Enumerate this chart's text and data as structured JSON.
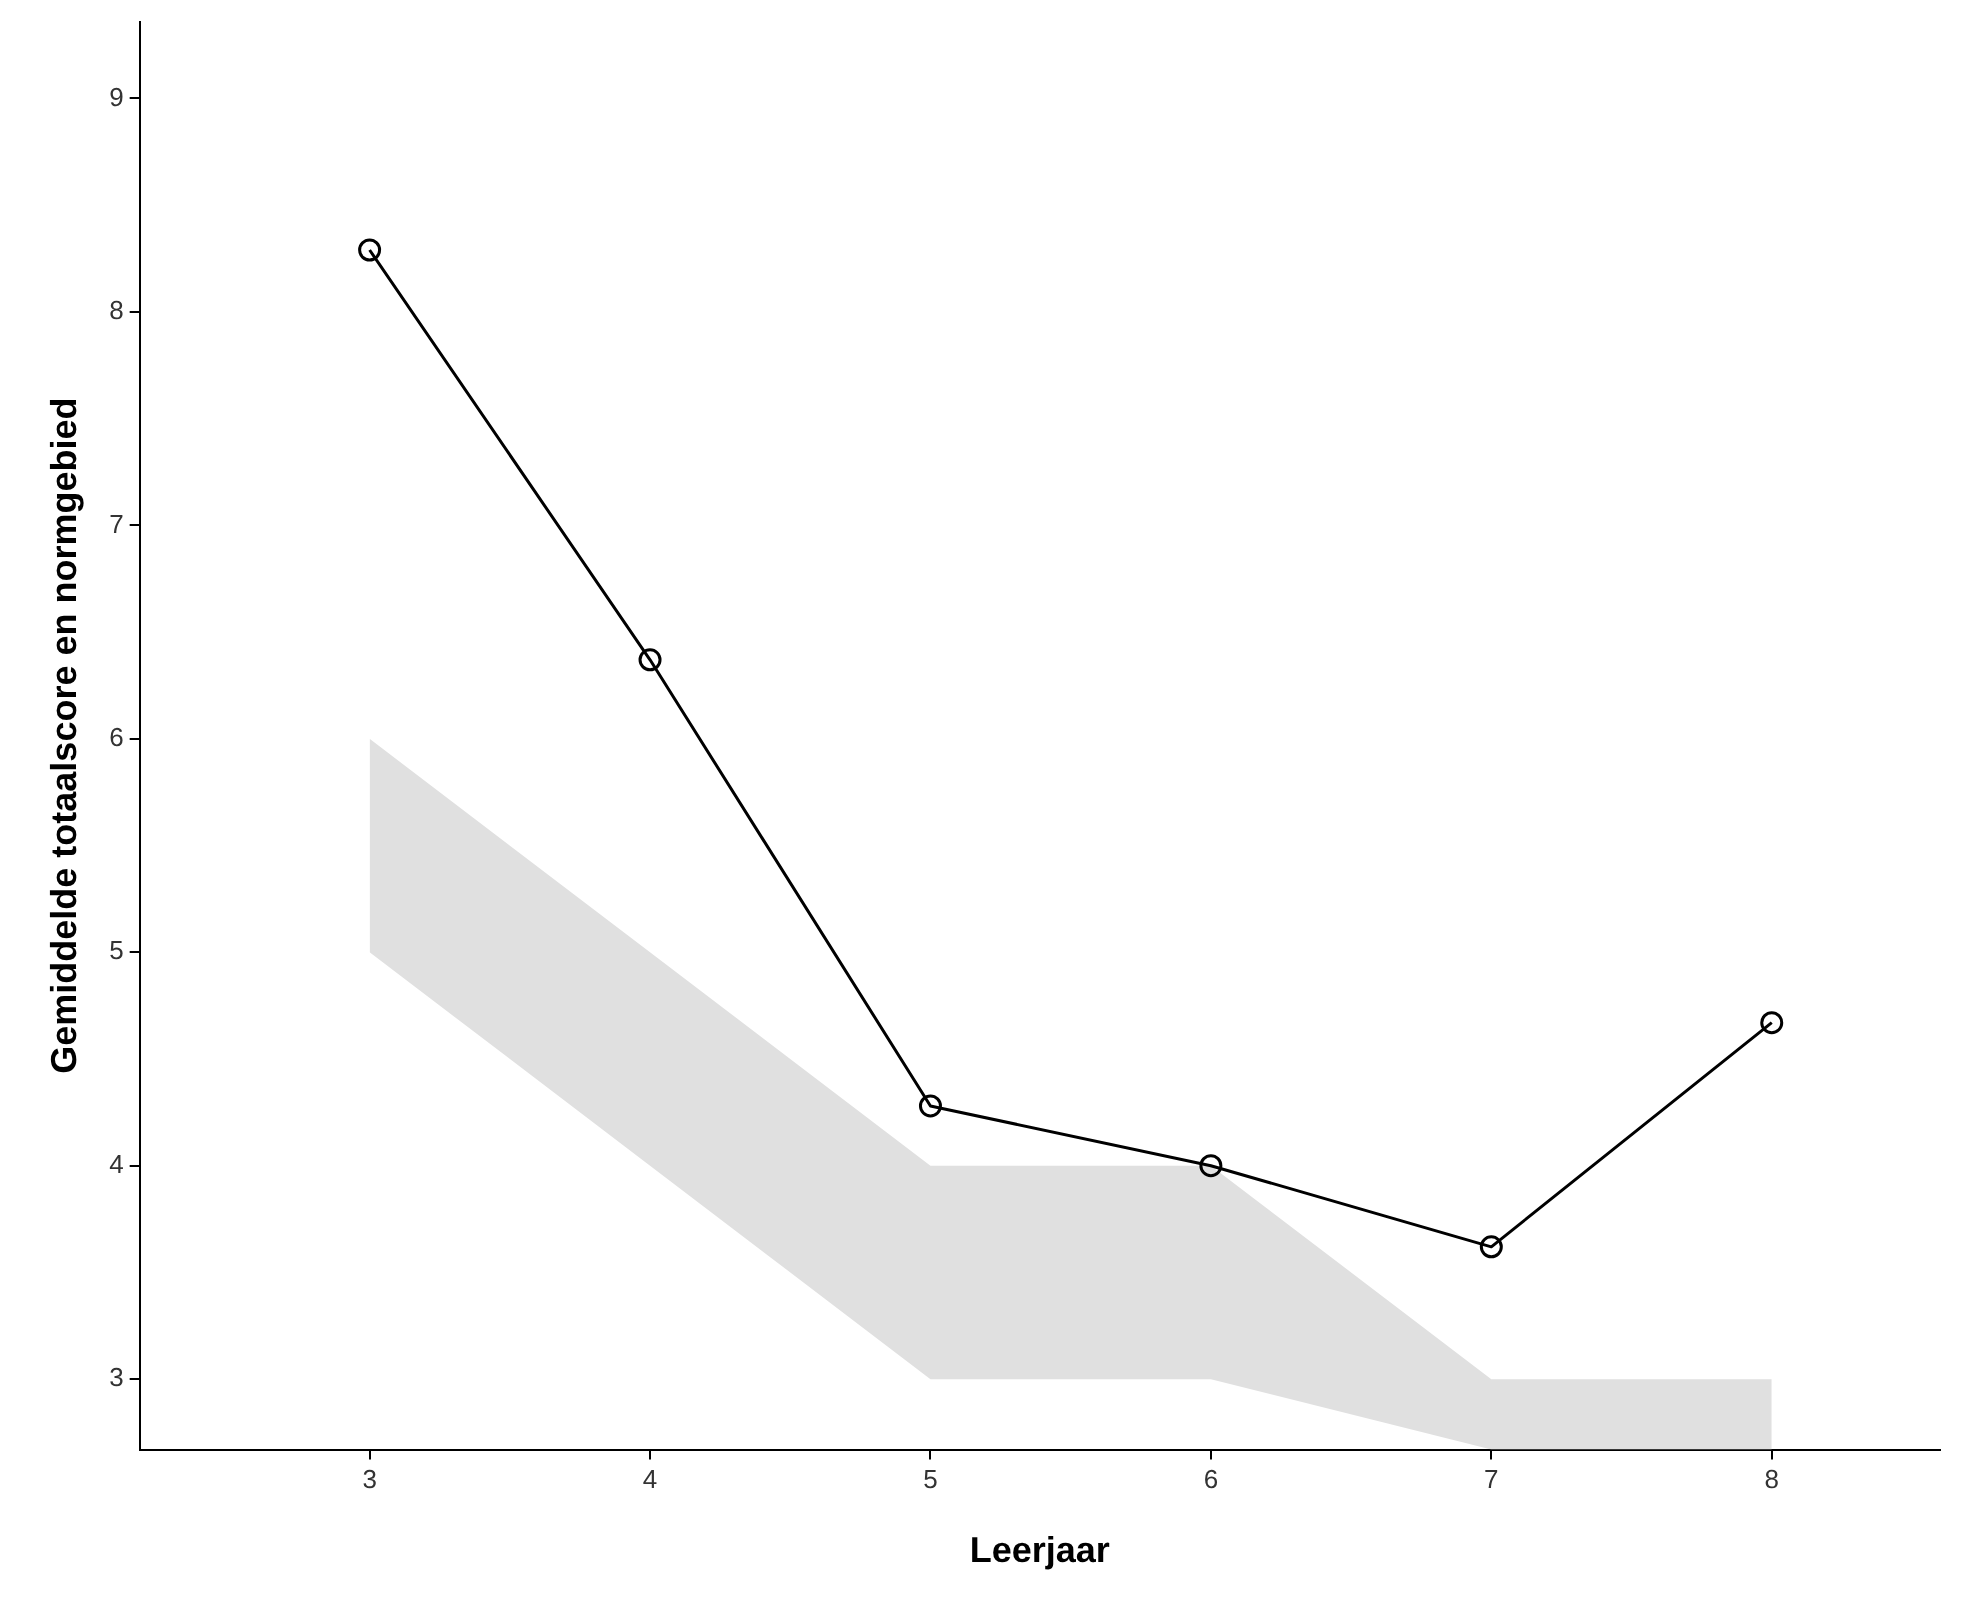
{
  "chart_data": {
    "type": "line",
    "xlabel": "Leerjaar",
    "ylabel": "Gemiddelde totaalscore en normgebied",
    "xlim": [
      2.18,
      8.6
    ],
    "ylim": [
      2.67,
      9.36
    ],
    "xticks": [
      3,
      4,
      5,
      6,
      7,
      8
    ],
    "yticks": [
      3,
      4,
      5,
      6,
      7,
      8,
      9
    ],
    "grid": false,
    "marker": "circle",
    "line_style": "solid",
    "series": [
      {
        "color": "#000000",
        "x": [
          3,
          4,
          5,
          6,
          7,
          8
        ],
        "values": [
          8.29,
          6.37,
          4.28,
          4.0,
          3.62,
          4.67
        ],
        "lower": [
          5,
          4,
          3,
          3,
          2.67,
          2.67
        ],
        "upper": [
          6,
          5,
          4,
          4,
          3,
          3
        ]
      }
    ]
  }
}
